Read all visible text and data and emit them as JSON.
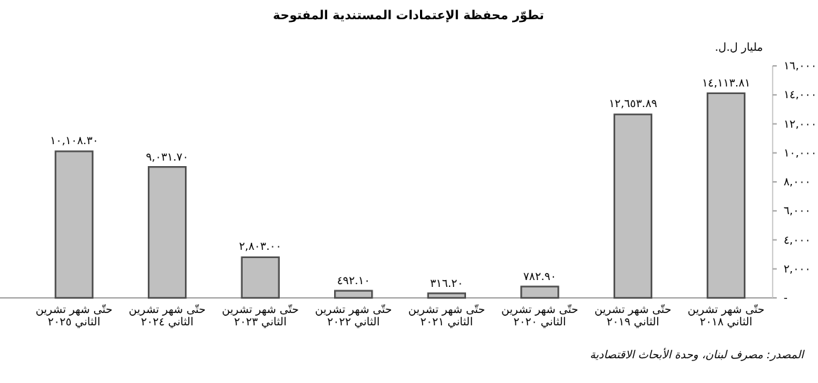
{
  "chart_data": {
    "type": "bar",
    "title": "تطوّر محفظة الإعتمادات المستندية المفتوحة",
    "ylabel": "مليار ل.ل.",
    "categories": [
      "حتّى شهر تشرين الثاني ٢٠٢٥",
      "حتّى شهر تشرين الثاني ٢٠٢٤",
      "حتّى شهر تشرين الثاني ٢٠٢٣",
      "حتّى شهر تشرين الثاني ٢٠٢٢",
      "حتّى شهر تشرين الثاني ٢٠٢١",
      "حتّى شهر تشرين الثاني ٢٠٢٠",
      "حتّى شهر تشرين الثاني ٢٠١٩",
      "حتّى شهر تشرين الثاني ٢٠١٨"
    ],
    "values": [
      10108.3,
      9031.7,
      2803.0,
      492.1,
      316.2,
      782.9,
      12653.89,
      14113.81
    ],
    "value_labels": [
      "١٠,١٠٨.٣٠",
      "٩,٠٣١.٧٠",
      "٢,٨٠٣.٠٠",
      "٤٩٢.١٠",
      "٣١٦.٢٠",
      "٧٨٢.٩٠",
      "١٢,٦٥٣.٨٩",
      "١٤,١١٣.٨١"
    ],
    "color": "#c0c0c0",
    "ylim": [
      0,
      16000
    ],
    "yticks": [
      {
        "value": 0,
        "label": "-"
      },
      {
        "value": 2000,
        "label": "٢,٠٠٠"
      },
      {
        "value": 4000,
        "label": "٤,٠٠٠"
      },
      {
        "value": 6000,
        "label": "٦,٠٠٠"
      },
      {
        "value": 8000,
        "label": "٨,٠٠٠"
      },
      {
        "value": 10000,
        "label": "١٠,٠٠٠"
      },
      {
        "value": 12000,
        "label": "١٢,٠٠٠"
      },
      {
        "value": 14000,
        "label": "١٤,٠٠٠"
      },
      {
        "value": 16000,
        "label": "١٦,٠٠٠"
      }
    ],
    "annotations": [
      "المصدر: مصرف لبنان، وحدة الأبحاث الاقتصادية"
    ]
  }
}
